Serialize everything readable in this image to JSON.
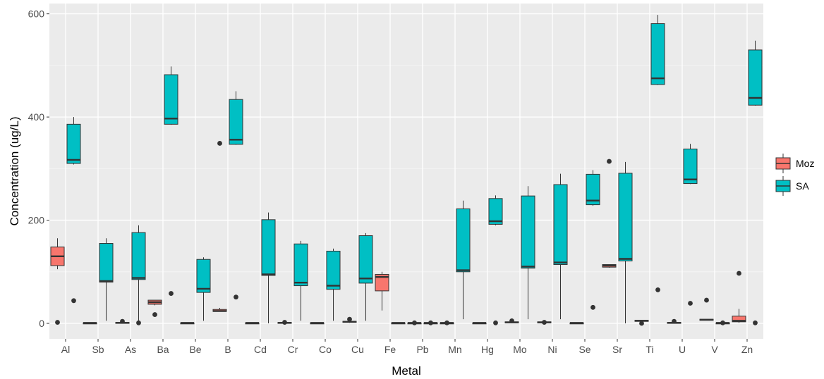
{
  "chart_data": {
    "type": "boxplot",
    "xlabel": "Metal",
    "ylabel": "Concentration (ug/L)",
    "ylim": [
      -30,
      620
    ],
    "yticks": [
      0,
      200,
      400,
      600
    ],
    "grid": true,
    "legend_position": "right",
    "legend": [
      "Moz",
      "SA"
    ],
    "colors": {
      "Moz": "#F8766D",
      "SA": "#00BFC4",
      "panel": "#EBEBEB",
      "grid_major": "#FFFFFF",
      "text": "#4D4D4D"
    },
    "categories": [
      "Al",
      "Sb",
      "As",
      "Ba",
      "Be",
      "B",
      "Cd",
      "Cr",
      "Co",
      "Cu",
      "Fe",
      "Pb",
      "Mn",
      "Hg",
      "Mo",
      "Ni",
      "Se",
      "Sr",
      "Ti",
      "U",
      "V",
      "Zn"
    ],
    "series": [
      {
        "name": "Moz",
        "boxes": [
          {
            "min": 105,
            "q1": 112,
            "median": 130,
            "q3": 148,
            "max": 165,
            "outliers": [
              2
            ]
          },
          {
            "min": 1,
            "q1": 1,
            "median": 1,
            "q3": 1,
            "max": 1,
            "outliers": []
          },
          {
            "min": 1,
            "q1": 1,
            "median": 1,
            "q3": 2,
            "max": 2,
            "outliers": [
              4
            ]
          },
          {
            "min": 35,
            "q1": 37,
            "median": 41,
            "q3": 45,
            "max": 45,
            "outliers": [
              17
            ]
          },
          {
            "min": 1,
            "q1": 1,
            "median": 1,
            "q3": 1,
            "max": 1,
            "outliers": []
          },
          {
            "min": 23,
            "q1": 23,
            "median": 24,
            "q3": 27,
            "max": 30,
            "outliers": [
              349
            ]
          },
          {
            "min": 1,
            "q1": 1,
            "median": 1,
            "q3": 1,
            "max": 1,
            "outliers": []
          },
          {
            "min": 1,
            "q1": 1,
            "median": 1,
            "q3": 2,
            "max": 2,
            "outliers": [
              2
            ]
          },
          {
            "min": 1,
            "q1": 1,
            "median": 1,
            "q3": 1,
            "max": 1,
            "outliers": []
          },
          {
            "min": 1,
            "q1": 2,
            "median": 3,
            "q3": 4,
            "max": 5,
            "outliers": [
              8
            ]
          },
          {
            "min": 25,
            "q1": 63,
            "median": 90,
            "q3": 95,
            "max": 100,
            "outliers": []
          },
          {
            "min": 1,
            "q1": 1,
            "median": 1,
            "q3": 1,
            "max": 1,
            "outliers": [
              1
            ]
          },
          {
            "min": 1,
            "q1": 1,
            "median": 1,
            "q3": 1,
            "max": 1,
            "outliers": [
              1
            ]
          },
          {
            "min": 1,
            "q1": 1,
            "median": 1,
            "q3": 1,
            "max": 1,
            "outliers": []
          },
          {
            "min": 1,
            "q1": 1,
            "median": 2,
            "q3": 3,
            "max": 3,
            "outliers": [
              5
            ]
          },
          {
            "min": 1,
            "q1": 1,
            "median": 2,
            "q3": 3,
            "max": 3,
            "outliers": [
              2
            ]
          },
          {
            "min": 1,
            "q1": 1,
            "median": 1,
            "q3": 1,
            "max": 1,
            "outliers": []
          },
          {
            "min": 108,
            "q1": 109,
            "median": 112,
            "q3": 114,
            "max": 114,
            "outliers": [
              314
            ]
          },
          {
            "min": 3,
            "q1": 4,
            "median": 5,
            "q3": 6,
            "max": 6,
            "outliers": [
              0
            ]
          },
          {
            "min": 1,
            "q1": 1,
            "median": 1,
            "q3": 2,
            "max": 2,
            "outliers": [
              4
            ]
          },
          {
            "min": 7,
            "q1": 7,
            "median": 7,
            "q3": 8,
            "max": 8,
            "outliers": [
              45
            ]
          },
          {
            "min": 1,
            "q1": 3,
            "median": 5,
            "q3": 14,
            "max": 28,
            "outliers": [
              97
            ]
          }
        ]
      },
      {
        "name": "SA",
        "boxes": [
          {
            "min": 308,
            "q1": 310,
            "median": 317,
            "q3": 386,
            "max": 400,
            "outliers": [
              44
            ]
          },
          {
            "min": 5,
            "q1": 80,
            "median": 82,
            "q3": 155,
            "max": 165,
            "outliers": []
          },
          {
            "min": 5,
            "q1": 85,
            "median": 88,
            "q3": 176,
            "max": 190,
            "outliers": [
              1
            ]
          },
          {
            "min": 385,
            "q1": 386,
            "median": 397,
            "q3": 482,
            "max": 498,
            "outliers": [
              58
            ]
          },
          {
            "min": 5,
            "q1": 60,
            "median": 67,
            "q3": 124,
            "max": 128,
            "outliers": []
          },
          {
            "min": 346,
            "q1": 347,
            "median": 356,
            "q3": 434,
            "max": 450,
            "outliers": [
              51
            ]
          },
          {
            "min": 0,
            "q1": 93,
            "median": 95,
            "q3": 201,
            "max": 215,
            "outliers": []
          },
          {
            "min": 5,
            "q1": 73,
            "median": 79,
            "q3": 154,
            "max": 160,
            "outliers": []
          },
          {
            "min": 5,
            "q1": 66,
            "median": 73,
            "q3": 140,
            "max": 145,
            "outliers": []
          },
          {
            "min": 5,
            "q1": 78,
            "median": 87,
            "q3": 170,
            "max": 175,
            "outliers": []
          },
          {
            "min": 1,
            "q1": 1,
            "median": 1,
            "q3": 1,
            "max": 1,
            "outliers": []
          },
          {
            "min": 1,
            "q1": 1,
            "median": 1,
            "q3": 1,
            "max": 1,
            "outliers": [
              1
            ]
          },
          {
            "min": 8,
            "q1": 100,
            "median": 103,
            "q3": 222,
            "max": 238,
            "outliers": []
          },
          {
            "min": 190,
            "q1": 192,
            "median": 198,
            "q3": 242,
            "max": 248,
            "outliers": [
              1
            ]
          },
          {
            "min": 8,
            "q1": 107,
            "median": 110,
            "q3": 247,
            "max": 266,
            "outliers": []
          },
          {
            "min": 8,
            "q1": 114,
            "median": 118,
            "q3": 269,
            "max": 290,
            "outliers": []
          },
          {
            "min": 228,
            "q1": 230,
            "median": 238,
            "q3": 289,
            "max": 297,
            "outliers": [
              31
            ]
          },
          {
            "min": 0,
            "q1": 121,
            "median": 125,
            "q3": 291,
            "max": 313,
            "outliers": []
          },
          {
            "min": 462,
            "q1": 463,
            "median": 475,
            "q3": 581,
            "max": 598,
            "outliers": [
              65
            ]
          },
          {
            "min": 270,
            "q1": 271,
            "median": 279,
            "q3": 338,
            "max": 348,
            "outliers": [
              39
            ]
          },
          {
            "min": 1,
            "q1": 1,
            "median": 1,
            "q3": 1,
            "max": 1,
            "outliers": [
              1
            ]
          },
          {
            "min": 422,
            "q1": 423,
            "median": 437,
            "q3": 530,
            "max": 548,
            "outliers": [
              1
            ]
          }
        ]
      }
    ]
  }
}
